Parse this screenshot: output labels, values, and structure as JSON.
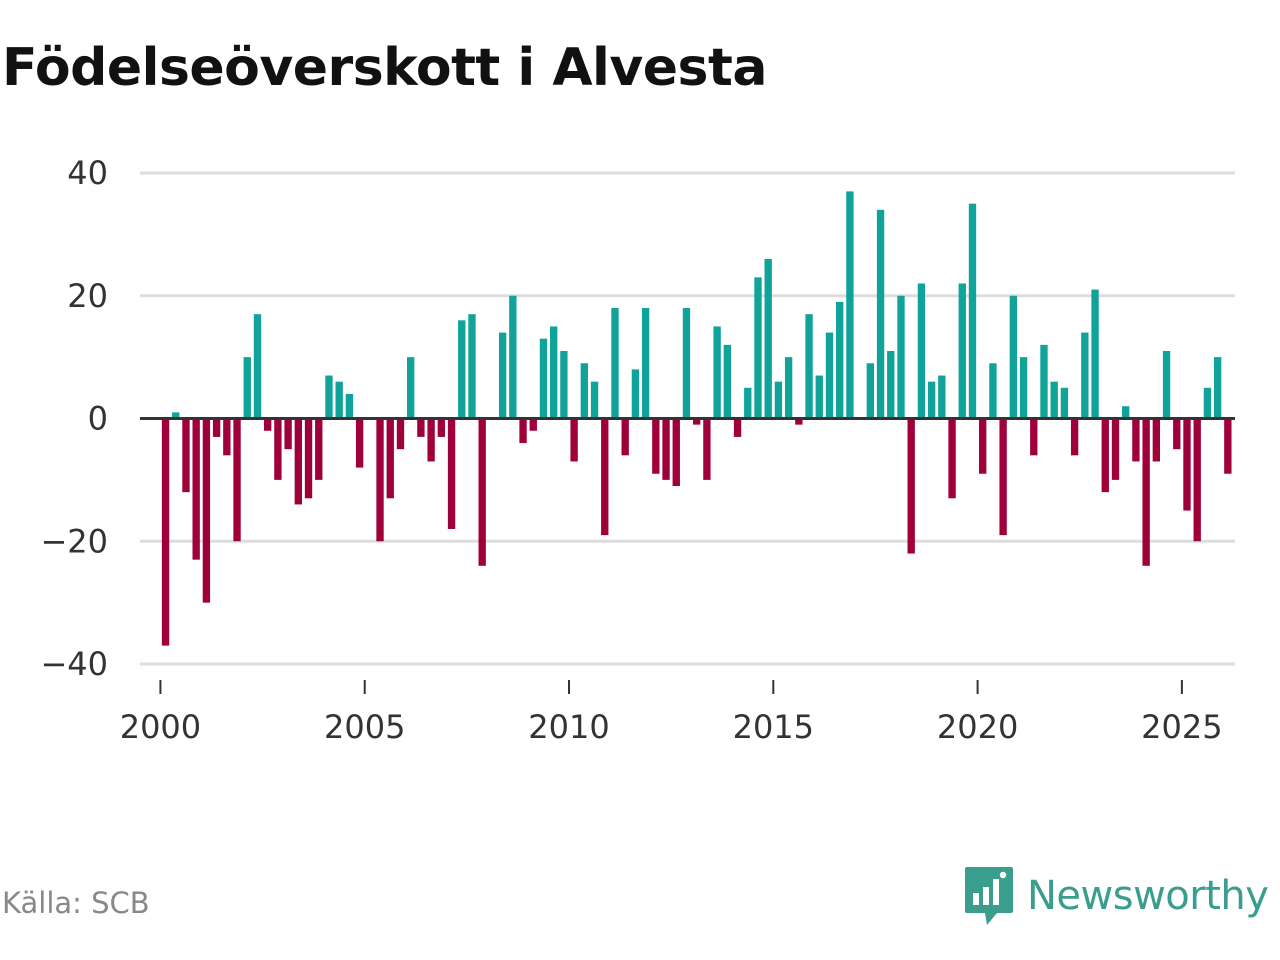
{
  "title": "Födelseöverskott i Alvesta",
  "source": "Källa: SCB",
  "brand": "Newsworthy",
  "colors": {
    "positive": "#0fa39a",
    "negative": "#a0003a",
    "grid": "#dddddd",
    "zero": "#333333",
    "brand": "#3a9e8e"
  },
  "chart_data": {
    "type": "bar",
    "title": "Födelseöverskott i Alvesta",
    "xlabel": "",
    "ylabel": "",
    "ylim": [
      -40,
      40
    ],
    "xlim": [
      1999.5,
      2026.3
    ],
    "y_ticks": [
      40,
      20,
      0,
      -20,
      -40
    ],
    "y_tick_labels": [
      "40",
      "20",
      "0",
      "−20",
      "−40"
    ],
    "x_ticks": [
      2000,
      2005,
      2010,
      2015,
      2020,
      2025
    ],
    "x_tick_labels": [
      "2000",
      "2005",
      "2010",
      "2015",
      "2020",
      "2025"
    ],
    "granularity": "quarterly",
    "start": "2000Q1",
    "values": [
      -37,
      1,
      -12,
      -23,
      -30,
      -3,
      -6,
      -20,
      10,
      17,
      -2,
      -10,
      -5,
      -14,
      -13,
      -10,
      7,
      6,
      4,
      -8,
      0,
      -20,
      -13,
      -5,
      10,
      -3,
      -7,
      -3,
      -18,
      16,
      17,
      -24,
      0,
      14,
      20,
      -4,
      -2,
      13,
      15,
      11,
      -7,
      9,
      6,
      -19,
      18,
      -6,
      8,
      18,
      -9,
      -10,
      -11,
      18,
      -1,
      -10,
      15,
      12,
      -3,
      5,
      23,
      26,
      6,
      10,
      -1,
      17,
      7,
      14,
      19,
      37,
      0,
      9,
      34,
      11,
      20,
      -22,
      22,
      6,
      7,
      -13,
      22,
      35,
      -9,
      9,
      -19,
      20,
      10,
      -6,
      12,
      6,
      5,
      -6,
      14,
      21,
      -12,
      -10,
      2,
      -7,
      -24,
      -7,
      11,
      -5,
      -15,
      -20,
      5,
      10,
      -9
    ]
  }
}
